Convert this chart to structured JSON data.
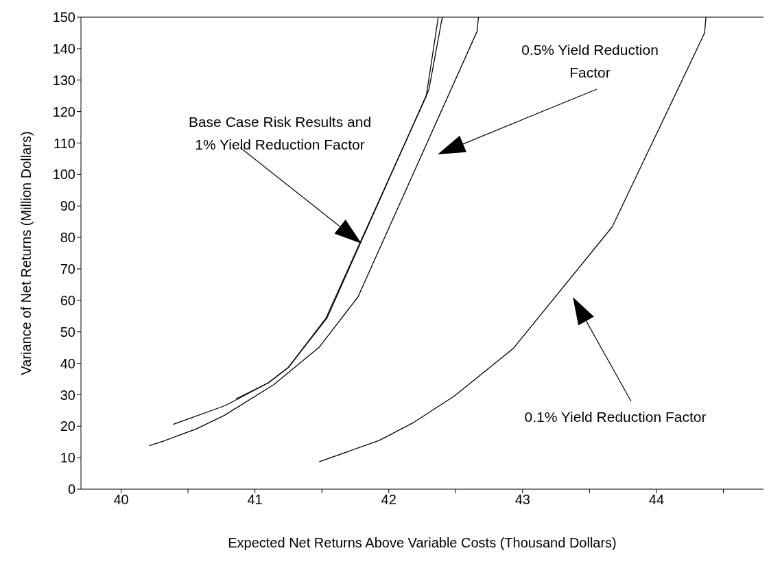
{
  "chart_data": {
    "type": "line",
    "xlabel": "Expected Net Returns Above Variable Costs (Thousand Dollars)",
    "ylabel": "Variance of Net Returns (Million Dollars)",
    "xlim": [
      39.7,
      44.8
    ],
    "xticks": [
      40,
      {
        "value": 40.5,
        "label": null
      },
      41,
      {
        "value": 41.5,
        "label": null
      },
      42,
      {
        "value": 42.5,
        "label": null
      },
      43,
      {
        "value": 43.5,
        "label": null
      },
      44,
      {
        "value": 44.5,
        "label": null
      }
    ],
    "ylim": [
      0,
      150
    ],
    "yticks": [
      0,
      10,
      20,
      30,
      40,
      50,
      60,
      70,
      80,
      90,
      100,
      110,
      120,
      130,
      140,
      150
    ],
    "series": [
      {
        "color": "#000000",
        "x": [
          40.39,
          40.78,
          41.1,
          41.25,
          41.53,
          42.28,
          42.37
        ],
        "values": [
          20.6,
          26.6,
          33.8,
          38.7,
          54.3,
          124.9,
          150
        ]
      },
      {
        "color": "#000000",
        "x": [
          40.86,
          41.1,
          41.25,
          41.54,
          42.3,
          42.4
        ],
        "values": [
          28.7,
          33.8,
          38.7,
          54.5,
          127,
          150
        ]
      },
      {
        "color": "#000000",
        "x": [
          40.21,
          40.31,
          40.56,
          40.77,
          41.14,
          41.48,
          41.77,
          42.66,
          42.67
        ],
        "values": [
          13.8,
          15.2,
          19.1,
          23.4,
          33.2,
          45.1,
          61.1,
          145.5,
          150
        ]
      },
      {
        "color": "#000000",
        "x": [
          41.48,
          41.93,
          42.19,
          42.49,
          42.93,
          43.67,
          44.36,
          44.37
        ],
        "values": [
          8.7,
          15.5,
          21.3,
          29.6,
          44.7,
          83.4,
          145,
          150
        ]
      }
    ],
    "annotations": [
      "Base Case Risk Results and 1% Yield Reduction Factor",
      "0.5% Yield Reduction Factor",
      "0.1% Yield Reduction Factor"
    ],
    "grid": false,
    "marker": "none",
    "line_style": "solid"
  }
}
